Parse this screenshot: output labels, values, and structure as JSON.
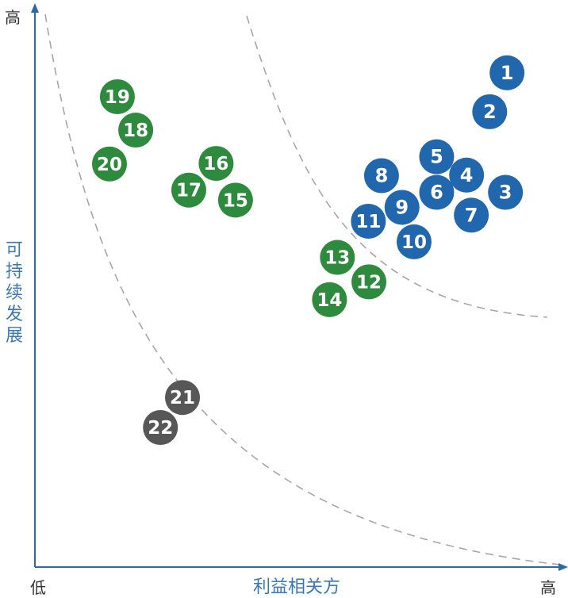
{
  "chart_data": {
    "type": "scatter",
    "xlabel": "利益相关方",
    "ylabel": "可持续发展",
    "x_low_label": "低",
    "x_high_label": "高",
    "y_high_label": "高",
    "xlim": [
      0,
      10
    ],
    "ylim": [
      0,
      10
    ],
    "grid": false,
    "colors": {
      "blue": "#2167ae",
      "green": "#2e8b3d",
      "gray": "#575757",
      "axis": "#2c6aa5",
      "curve": "#a6a6a6"
    },
    "points": [
      {
        "label": "1",
        "x": 8.99,
        "y": 8.89,
        "group": "blue"
      },
      {
        "label": "2",
        "x": 8.66,
        "y": 8.19,
        "group": "blue"
      },
      {
        "label": "3",
        "x": 8.96,
        "y": 6.74,
        "group": "blue"
      },
      {
        "label": "4",
        "x": 8.22,
        "y": 7.05,
        "group": "blue"
      },
      {
        "label": "5",
        "x": 7.65,
        "y": 7.38,
        "group": "blue"
      },
      {
        "label": "6",
        "x": 7.65,
        "y": 6.74,
        "group": "blue"
      },
      {
        "label": "7",
        "x": 8.31,
        "y": 6.33,
        "group": "blue"
      },
      {
        "label": "8",
        "x": 6.6,
        "y": 7.04,
        "group": "blue"
      },
      {
        "label": "9",
        "x": 6.99,
        "y": 6.47,
        "group": "blue"
      },
      {
        "label": "10",
        "x": 7.22,
        "y": 5.85,
        "group": "blue"
      },
      {
        "label": "11",
        "x": 6.35,
        "y": 6.22,
        "group": "blue"
      },
      {
        "label": "12",
        "x": 6.36,
        "y": 5.13,
        "group": "green"
      },
      {
        "label": "13",
        "x": 5.76,
        "y": 5.57,
        "group": "green"
      },
      {
        "label": "14",
        "x": 5.61,
        "y": 4.81,
        "group": "green"
      },
      {
        "label": "15",
        "x": 3.82,
        "y": 6.6,
        "group": "green"
      },
      {
        "label": "16",
        "x": 3.45,
        "y": 7.26,
        "group": "green"
      },
      {
        "label": "17",
        "x": 2.93,
        "y": 6.78,
        "group": "green"
      },
      {
        "label": "18",
        "x": 1.92,
        "y": 7.86,
        "group": "green"
      },
      {
        "label": "19",
        "x": 1.57,
        "y": 8.46,
        "group": "green"
      },
      {
        "label": "20",
        "x": 1.42,
        "y": 7.25,
        "group": "green"
      },
      {
        "label": "21",
        "x": 2.81,
        "y": 3.05,
        "group": "gray"
      },
      {
        "label": "22",
        "x": 2.39,
        "y": 2.51,
        "group": "gray"
      }
    ]
  }
}
